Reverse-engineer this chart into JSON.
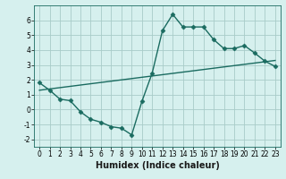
{
  "title": "",
  "xlabel": "Humidex (Indice chaleur)",
  "ylabel": "",
  "background_color": "#d6f0ee",
  "grid_color": "#a8ccc8",
  "line_color": "#1a6b60",
  "xlim": [
    -0.5,
    23.5
  ],
  "ylim": [
    -2.5,
    7.0
  ],
  "yticks": [
    -2,
    -1,
    0,
    1,
    2,
    3,
    4,
    5,
    6
  ],
  "xticks": [
    0,
    1,
    2,
    3,
    4,
    5,
    6,
    7,
    8,
    9,
    10,
    11,
    12,
    13,
    14,
    15,
    16,
    17,
    18,
    19,
    20,
    21,
    22,
    23
  ],
  "curve1_x": [
    0,
    1,
    2,
    3,
    4,
    5,
    6,
    7,
    8,
    9,
    10,
    11,
    12,
    13,
    14,
    15,
    16,
    17,
    18,
    19,
    20,
    21,
    22,
    23
  ],
  "curve1_y": [
    1.8,
    1.3,
    0.7,
    0.6,
    -0.15,
    -0.65,
    -0.85,
    -1.15,
    -1.25,
    -1.7,
    0.55,
    2.45,
    5.3,
    6.4,
    5.55,
    5.55,
    5.55,
    4.7,
    4.1,
    4.1,
    4.3,
    3.8,
    3.25,
    2.9
  ],
  "curve2_x": [
    0,
    23
  ],
  "curve2_y": [
    1.3,
    3.3
  ],
  "font_size_xlabel": 7,
  "font_size_tick": 5.5,
  "marker": "D",
  "marker_size": 2.5,
  "linewidth": 1.0
}
